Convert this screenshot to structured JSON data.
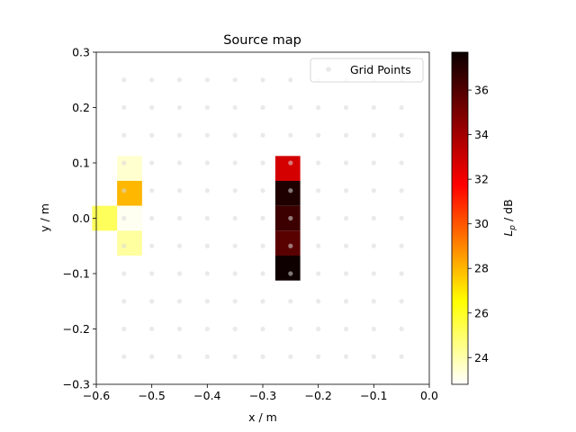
{
  "chart_data": {
    "type": "heatmap",
    "title": "Source map",
    "xlabel": "x / m",
    "ylabel": "y / m",
    "xlim": [
      -0.6,
      0.0
    ],
    "ylim": [
      -0.3,
      0.3
    ],
    "x_ticks": [
      "−0.6",
      "−0.5",
      "−0.4",
      "−0.3",
      "−0.2",
      "−0.1",
      "0.0"
    ],
    "y_ticks": [
      "0.3",
      "0.2",
      "0.1",
      "0.0",
      "−0.1",
      "−0.2",
      "−0.3"
    ],
    "legend": {
      "label": "Grid Points",
      "placement": "top-right"
    },
    "grid_points": {
      "x": [
        -0.55,
        -0.5,
        -0.45,
        -0.4,
        -0.35,
        -0.3,
        -0.25,
        -0.2,
        -0.15,
        -0.1,
        -0.05
      ],
      "y": [
        0.25,
        0.2,
        0.15,
        0.1,
        0.05,
        0.0,
        -0.05,
        -0.1,
        -0.15,
        -0.2,
        -0.25
      ]
    },
    "colorbar": {
      "label_main": "L",
      "label_sub": "p",
      "label_unit": " / dB",
      "min": 22.8,
      "max": 37.7,
      "ticks": [
        "24",
        "26",
        "28",
        "30",
        "32",
        "34",
        "36"
      ]
    },
    "cells": [
      {
        "x": -0.54,
        "y": 0.09,
        "value": 23.5
      },
      {
        "x": -0.54,
        "y": 0.045,
        "value": 28.0
      },
      {
        "x": -0.54,
        "y": 0.0,
        "value": 23.0
      },
      {
        "x": -0.585,
        "y": 0.0,
        "value": 25.2
      },
      {
        "x": -0.54,
        "y": -0.045,
        "value": 24.2
      },
      {
        "x": -0.255,
        "y": 0.09,
        "value": 32.8
      },
      {
        "x": -0.255,
        "y": 0.045,
        "value": 37.2
      },
      {
        "x": -0.255,
        "y": 0.0,
        "value": 36.5
      },
      {
        "x": -0.255,
        "y": -0.045,
        "value": 35.8
      },
      {
        "x": -0.255,
        "y": -0.09,
        "value": 37.6
      }
    ]
  }
}
